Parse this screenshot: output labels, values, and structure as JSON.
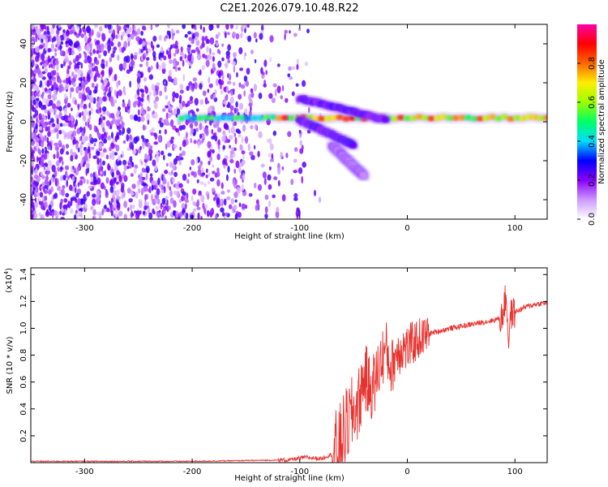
{
  "title": "C2E1.2026.079.10.48.R22",
  "chart_data": [
    {
      "type": "heatmap",
      "xlabel": "Height of straight line (km)",
      "ylabel": "Frequency (Hz)",
      "xlim": [
        -350,
        130
      ],
      "ylim": [
        -50,
        50
      ],
      "xticks": [
        -300,
        -200,
        -100,
        0,
        100
      ],
      "yticks": [
        -40,
        -20,
        0,
        20,
        40
      ],
      "colorbar": {
        "label": "Normalized spectral amplitude",
        "range": [
          0,
          1
        ],
        "ticks": [
          "0.0",
          "0.2",
          "0.4",
          "0.6",
          "0.8"
        ],
        "colors": [
          "#ffffff",
          "#cc99ff",
          "#8800ff",
          "#0000ff",
          "#00ddff",
          "#00ff66",
          "#99ff00",
          "#ffee00",
          "#ff6600",
          "#ff0000",
          "#ff00aa"
        ]
      },
      "features": [
        {
          "name": "main-band",
          "x": [
            -210,
            130
          ],
          "freq": 2,
          "amplitude": 0.9
        },
        {
          "name": "upper-branch",
          "x": [
            -100,
            -20
          ],
          "freq_start": 12,
          "freq_end": 1,
          "amplitude": 0.3
        },
        {
          "name": "lower-branch",
          "x": [
            -100,
            -50
          ],
          "freq_start": 1,
          "freq_end": -12,
          "amplitude": 0.3
        },
        {
          "name": "tail",
          "x": [
            -70,
            -40
          ],
          "freq_start": -12,
          "freq_end": -28,
          "amplitude": 0.15
        }
      ]
    },
    {
      "type": "line",
      "xlabel": "Height of straight line (km)",
      "ylabel": "SNR (10 * v/v)",
      "y_scale_label": "(x10",
      "y_scale_exponent": "4",
      "xlim": [
        -350,
        130
      ],
      "ylim": [
        0,
        1.45
      ],
      "xticks": [
        -300,
        -200,
        -100,
        0,
        100
      ],
      "yticks": [
        0.2,
        0.4,
        0.6,
        0.8,
        1.0,
        1.2,
        1.4
      ],
      "series": [
        {
          "color": "#e8322e",
          "x": [
            -350,
            -200,
            -110,
            -95,
            -80,
            -65,
            -55,
            -45,
            -40,
            -35,
            -30,
            -25,
            -20,
            -15,
            -10,
            -5,
            0,
            10,
            20,
            30,
            40,
            60,
            80,
            88,
            92,
            94,
            96,
            100,
            110,
            120,
            130
          ],
          "y": [
            0.01,
            0.01,
            0.02,
            0.04,
            0.03,
            0.08,
            0.3,
            0.45,
            0.65,
            0.55,
            0.6,
            0.75,
            0.85,
            0.7,
            0.82,
            0.86,
            0.85,
            0.92,
            0.96,
            0.98,
            1.0,
            1.03,
            1.06,
            1.08,
            1.25,
            0.9,
            1.1,
            1.12,
            1.16,
            1.18,
            1.19
          ]
        }
      ]
    }
  ]
}
